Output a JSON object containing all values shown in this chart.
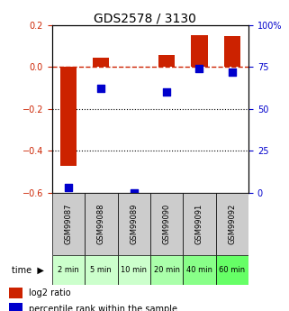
{
  "title": "GDS2578 / 3130",
  "categories": [
    "GSM99087",
    "GSM99088",
    "GSM99089",
    "GSM99090",
    "GSM99091",
    "GSM99092"
  ],
  "time_labels": [
    "2 min",
    "5 min",
    "10 min",
    "20 min",
    "40 min",
    "60 min"
  ],
  "log2_ratio": [
    -0.47,
    0.045,
    0.0,
    0.055,
    0.15,
    0.145
  ],
  "percentile_rank": [
    3,
    62,
    0,
    60,
    74,
    72
  ],
  "ylim_left": [
    -0.6,
    0.2
  ],
  "ylim_right": [
    0,
    100
  ],
  "left_yticks": [
    -0.6,
    -0.4,
    -0.2,
    0.0,
    0.2
  ],
  "right_yticks": [
    0,
    25,
    50,
    75,
    100
  ],
  "bar_color": "#cc2200",
  "dot_color": "#0000cc",
  "dashed_line_color": "#cc2200",
  "grid_color": "#000000",
  "bg_color": "#ffffff",
  "plot_bg_color": "#ffffff",
  "gsm_bg_color": "#cccccc",
  "time_bg_colors": [
    "#ccffcc",
    "#ccffcc",
    "#ccffcc",
    "#aaffaa",
    "#88ff88",
    "#66ff66"
  ],
  "left_tick_color": "#cc2200",
  "right_tick_color": "#0000cc",
  "bar_width": 0.5
}
